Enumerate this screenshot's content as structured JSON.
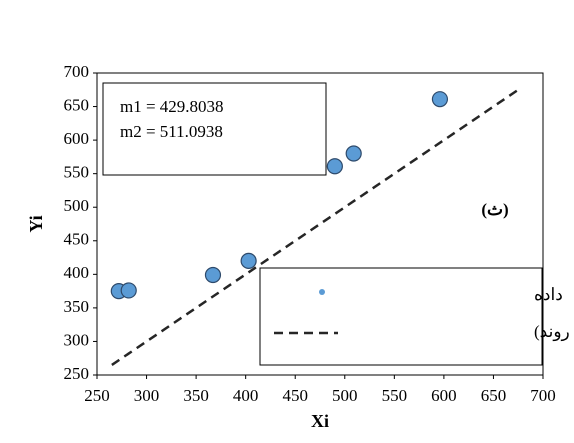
{
  "chart_data": {
    "type": "scatter",
    "x_label": "Xi",
    "y_label": "Yi",
    "annotations": [
      "m1 = 429.8038",
      "m2 = 511.0938",
      "(ث)"
    ],
    "series": [
      {
        "name": "داده",
        "color": "#5b9bd5",
        "x": [
          272,
          282,
          367,
          403,
          490,
          509,
          596
        ],
        "values": [
          375,
          376,
          399,
          420,
          561,
          580,
          661
        ]
      },
      {
        "name": "Linear (بدون روند)",
        "color": "#262626",
        "line": "dashed",
        "x": [
          265,
          675
        ],
        "values": [
          265,
          675
        ]
      }
    ],
    "xlim": [
      250,
      700
    ],
    "ylim": [
      250,
      700
    ],
    "xticks": [
      250,
      300,
      350,
      400,
      450,
      500,
      550,
      600,
      650,
      700
    ],
    "yticks": [
      250,
      300,
      350,
      400,
      450,
      500,
      550,
      600,
      650,
      700
    ],
    "grid": false,
    "legend": "lower right"
  }
}
